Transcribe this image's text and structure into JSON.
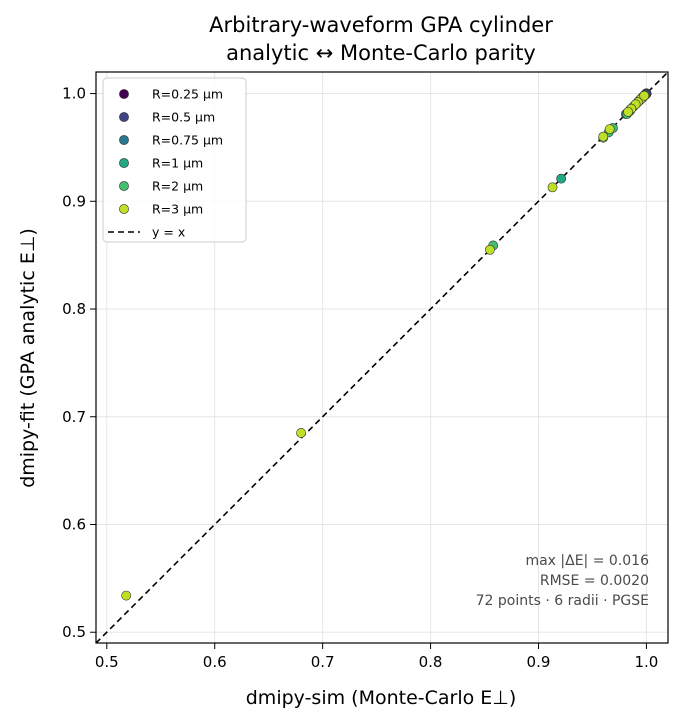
{
  "chart_data": {
    "type": "scatter",
    "title": [
      "Arbitrary-waveform GPA cylinder",
      "analytic ↔ Monte-Carlo parity"
    ],
    "xlabel": "dmipy-sim  (Monte-Carlo E⊥)",
    "ylabel": "dmipy-fit  (GPA analytic E⊥)",
    "xlim": [
      0.49,
      1.02
    ],
    "ylim": [
      0.49,
      1.02
    ],
    "xticks": [
      0.5,
      0.6,
      0.7,
      0.8,
      0.9,
      1.0
    ],
    "yticks": [
      0.5,
      0.6,
      0.7,
      0.8,
      0.9,
      1.0
    ],
    "xtick_labels": [
      "0.5",
      "0.6",
      "0.7",
      "0.8",
      "0.9",
      "1.0"
    ],
    "ytick_labels": [
      "0.5",
      "0.6",
      "0.7",
      "0.8",
      "0.9",
      "1.0"
    ],
    "grid": true,
    "legend_position": "top-left",
    "series": [
      {
        "name": "R=0.25 μm",
        "color": "#440154",
        "points": [
          [
            1.0,
            1.0
          ],
          [
            1.0,
            1.0
          ],
          [
            1.0,
            1.0
          ],
          [
            1.0,
            1.0
          ],
          [
            1.0,
            1.0
          ],
          [
            1.0,
            1.0
          ],
          [
            1.0,
            1.0
          ],
          [
            1.0,
            1.0
          ],
          [
            1.0,
            1.0
          ],
          [
            1.0,
            1.0
          ],
          [
            1.0,
            1.0
          ],
          [
            1.0,
            1.0
          ]
        ]
      },
      {
        "name": "R=0.5 μm",
        "color": "#414487",
        "points": [
          [
            1.0,
            1.0
          ],
          [
            1.0,
            1.0
          ],
          [
            1.0,
            1.0
          ],
          [
            1.0,
            1.0
          ],
          [
            0.999,
            0.999
          ],
          [
            0.999,
            0.999
          ],
          [
            1.0,
            1.0
          ],
          [
            1.0,
            1.0
          ],
          [
            0.999,
            0.999
          ],
          [
            1.0,
            1.0
          ],
          [
            1.0,
            1.0
          ],
          [
            0.999,
            0.999
          ]
        ]
      },
      {
        "name": "R=0.75 μm",
        "color": "#2a788e",
        "points": [
          [
            0.999,
            0.999
          ],
          [
            0.998,
            0.998
          ],
          [
            0.999,
            0.999
          ],
          [
            0.997,
            0.997
          ],
          [
            0.999,
            0.999
          ],
          [
            0.998,
            0.998
          ],
          [
            0.999,
            0.999
          ],
          [
            0.998,
            0.998
          ],
          [
            0.997,
            0.997
          ],
          [
            0.999,
            0.999
          ],
          [
            0.998,
            0.998
          ],
          [
            0.996,
            0.996
          ]
        ]
      },
      {
        "name": "R=1 μm",
        "color": "#22a884",
        "points": [
          [
            0.998,
            0.998
          ],
          [
            0.996,
            0.996
          ],
          [
            0.994,
            0.994
          ],
          [
            0.997,
            0.997
          ],
          [
            0.995,
            0.995
          ],
          [
            0.993,
            0.993
          ],
          [
            0.985,
            0.985
          ],
          [
            0.981,
            0.981
          ],
          [
            0.998,
            0.998
          ],
          [
            0.996,
            0.996
          ],
          [
            0.994,
            0.994
          ],
          [
            0.921,
            0.921
          ]
        ]
      },
      {
        "name": "R=2 μm",
        "color": "#44bf70",
        "points": [
          [
            0.993,
            0.993
          ],
          [
            0.99,
            0.99
          ],
          [
            0.985,
            0.984
          ],
          [
            0.982,
            0.981
          ],
          [
            0.969,
            0.968
          ],
          [
            0.965,
            0.964
          ],
          [
            0.96,
            0.959
          ],
          [
            0.858,
            0.859
          ],
          [
            0.995,
            0.995
          ],
          [
            0.988,
            0.988
          ],
          [
            0.992,
            0.992
          ],
          [
            0.996,
            0.996
          ]
        ]
      },
      {
        "name": "R=3 μm",
        "color": "#bddf26",
        "points": [
          [
            0.995,
            0.995
          ],
          [
            0.992,
            0.992
          ],
          [
            0.99,
            0.99
          ],
          [
            0.986,
            0.986
          ],
          [
            0.983,
            0.983
          ],
          [
            0.966,
            0.967
          ],
          [
            0.96,
            0.96
          ],
          [
            0.913,
            0.913
          ],
          [
            0.855,
            0.855
          ],
          [
            0.68,
            0.685
          ],
          [
            0.518,
            0.534
          ],
          [
            0.998,
            0.998
          ]
        ]
      }
    ],
    "reference_line": {
      "label": "y = x",
      "color": "#000000",
      "style": "dashed"
    },
    "annotations": [
      "max |ΔE| = 0.016",
      "RMSE = 0.0020",
      "72 points · 6 radii · PGSE"
    ]
  }
}
